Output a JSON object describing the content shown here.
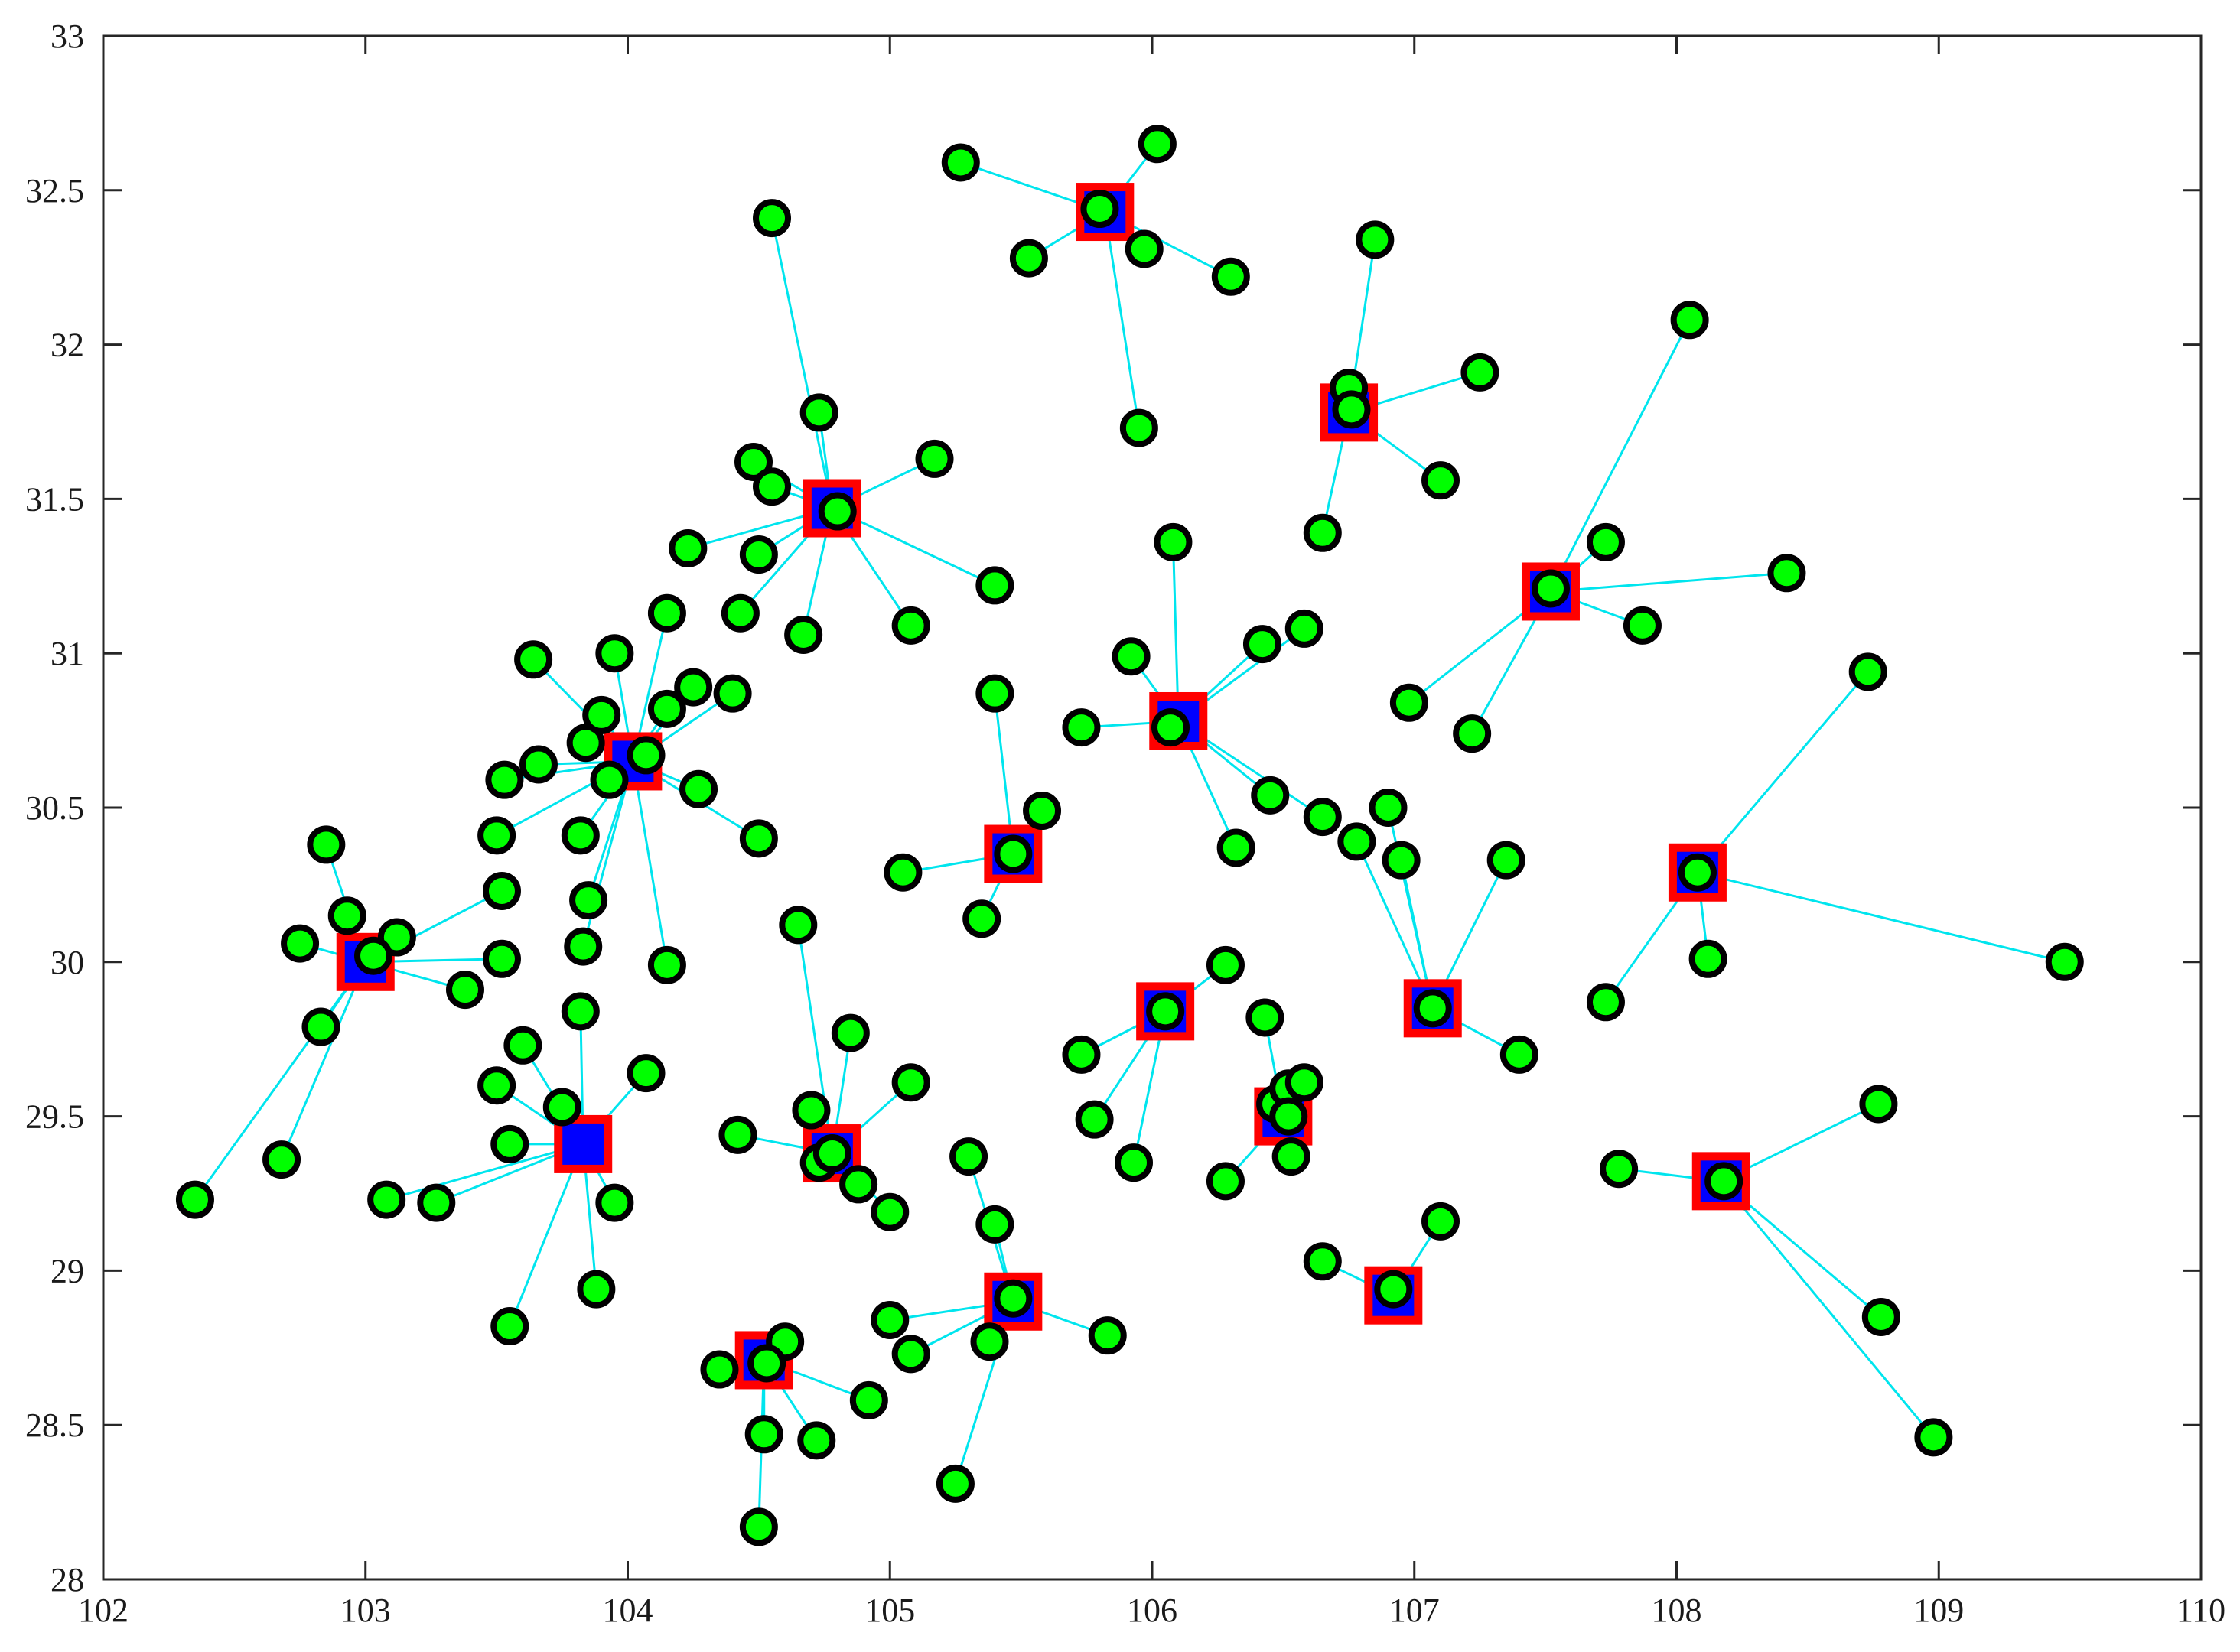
{
  "chart_data": {
    "type": "scatter",
    "title": "",
    "xlabel": "",
    "ylabel": "",
    "xlim": [
      102,
      110
    ],
    "ylim": [
      28,
      33
    ],
    "xticks": [
      102,
      103,
      104,
      105,
      106,
      107,
      108,
      109,
      110
    ],
    "yticks": [
      28,
      28.5,
      29,
      29.5,
      30,
      30.5,
      31,
      31.5,
      32,
      32.5,
      33
    ],
    "xtick_labels": [
      "102",
      "103",
      "104",
      "105",
      "106",
      "107",
      "108",
      "109",
      "110"
    ],
    "ytick_labels": [
      "28",
      "28.5",
      "29",
      "29.5",
      "30",
      "30.5",
      "31",
      "31.5",
      "32",
      "32.5",
      "33"
    ],
    "grid": false,
    "colors": {
      "point_fill": "#00ff00",
      "point_edge": "#000000",
      "center_outer": "#ff0000",
      "center_inner": "#0000ff",
      "link": "#00e5ee"
    },
    "clusters": [
      {
        "center": [
          103.0,
          30.0
        ],
        "points": [
          [
            102.35,
            29.23
          ],
          [
            102.68,
            29.36
          ],
          [
            102.83,
            29.79
          ],
          [
            102.75,
            30.06
          ],
          [
            102.85,
            30.38
          ],
          [
            102.93,
            30.15
          ],
          [
            103.12,
            30.08
          ],
          [
            103.03,
            30.02
          ],
          [
            103.38,
            29.91
          ],
          [
            103.52,
            30.01
          ],
          [
            103.52,
            30.23
          ]
        ]
      },
      {
        "center": [
          104.02,
          30.65
        ],
        "points": [
          [
            103.5,
            30.41
          ],
          [
            103.53,
            30.59
          ],
          [
            103.66,
            30.64
          ],
          [
            103.64,
            30.98
          ],
          [
            103.82,
            30.41
          ],
          [
            103.84,
            30.71
          ],
          [
            103.9,
            30.8
          ],
          [
            103.95,
            31.0
          ],
          [
            104.15,
            30.82
          ],
          [
            104.15,
            31.13
          ],
          [
            104.25,
            30.89
          ],
          [
            104.27,
            30.56
          ],
          [
            104.4,
            30.87
          ],
          [
            104.5,
            30.4
          ],
          [
            103.85,
            30.2
          ],
          [
            103.83,
            30.05
          ],
          [
            104.15,
            29.99
          ],
          [
            104.07,
            30.67
          ],
          [
            103.93,
            30.59
          ]
        ]
      },
      {
        "center": [
          103.83,
          29.41
        ],
        "points": [
          [
            103.6,
            29.73
          ],
          [
            103.5,
            29.6
          ],
          [
            103.55,
            29.41
          ],
          [
            103.75,
            29.53
          ],
          [
            103.82,
            29.84
          ],
          [
            104.07,
            29.64
          ],
          [
            103.95,
            29.22
          ],
          [
            103.88,
            28.94
          ],
          [
            103.55,
            28.82
          ],
          [
            103.08,
            29.23
          ],
          [
            103.27,
            29.22
          ]
        ]
      },
      {
        "center": [
          104.78,
          31.47
        ],
        "points": [
          [
            104.55,
            32.41
          ],
          [
            104.73,
            31.78
          ],
          [
            104.48,
            31.62
          ],
          [
            104.55,
            31.54
          ],
          [
            104.5,
            31.32
          ],
          [
            104.23,
            31.34
          ],
          [
            104.43,
            31.13
          ],
          [
            104.67,
            31.06
          ],
          [
            105.17,
            31.63
          ],
          [
            105.4,
            31.22
          ],
          [
            105.08,
            31.09
          ],
          [
            104.8,
            31.46
          ]
        ]
      },
      {
        "center": [
          104.78,
          29.38
        ],
        "points": [
          [
            104.65,
            30.12
          ],
          [
            104.85,
            29.77
          ],
          [
            104.7,
            29.52
          ],
          [
            104.73,
            29.35
          ],
          [
            104.42,
            29.44
          ],
          [
            104.88,
            29.28
          ],
          [
            105.0,
            29.19
          ],
          [
            105.08,
            29.61
          ],
          [
            104.78,
            29.38
          ]
        ]
      },
      {
        "center": [
          104.52,
          28.71
        ],
        "points": [
          [
            104.35,
            28.68
          ],
          [
            104.6,
            28.77
          ],
          [
            104.52,
            28.47
          ],
          [
            104.5,
            28.17
          ],
          [
            104.72,
            28.45
          ],
          [
            104.92,
            28.58
          ],
          [
            104.53,
            28.7
          ]
        ]
      },
      {
        "center": [
          105.47,
          28.9
        ],
        "points": [
          [
            105.3,
            29.37
          ],
          [
            105.4,
            29.15
          ],
          [
            105.0,
            28.84
          ],
          [
            105.08,
            28.73
          ],
          [
            105.38,
            28.77
          ],
          [
            105.25,
            28.31
          ],
          [
            105.83,
            28.79
          ],
          [
            105.47,
            28.91
          ]
        ]
      },
      {
        "center": [
          105.47,
          30.35
        ],
        "points": [
          [
            105.4,
            30.87
          ],
          [
            105.58,
            30.49
          ],
          [
            105.05,
            30.29
          ],
          [
            105.35,
            30.14
          ],
          [
            105.47,
            30.35
          ]
        ]
      },
      {
        "center": [
          105.82,
          32.43
        ],
        "points": [
          [
            105.27,
            32.59
          ],
          [
            106.02,
            32.65
          ],
          [
            105.53,
            32.28
          ],
          [
            105.97,
            32.31
          ],
          [
            106.3,
            32.22
          ],
          [
            105.95,
            31.73
          ],
          [
            105.8,
            32.44
          ]
        ]
      },
      {
        "center": [
          106.1,
          30.78
        ],
        "points": [
          [
            106.08,
            31.36
          ],
          [
            105.92,
            30.99
          ],
          [
            105.73,
            30.76
          ],
          [
            106.42,
            31.03
          ],
          [
            106.58,
            31.08
          ],
          [
            106.45,
            30.54
          ],
          [
            106.32,
            30.37
          ],
          [
            106.65,
            30.47
          ],
          [
            106.07,
            30.76
          ]
        ]
      },
      {
        "center": [
          106.05,
          29.84
        ],
        "points": [
          [
            106.28,
            29.99
          ],
          [
            105.73,
            29.7
          ],
          [
            105.78,
            29.49
          ],
          [
            105.93,
            29.35
          ],
          [
            106.05,
            29.84
          ]
        ]
      },
      {
        "center": [
          106.5,
          29.5
        ],
        "points": [
          [
            106.43,
            29.82
          ],
          [
            106.47,
            29.54
          ],
          [
            106.52,
            29.59
          ],
          [
            106.58,
            29.61
          ],
          [
            106.53,
            29.37
          ],
          [
            106.28,
            29.29
          ],
          [
            106.52,
            29.5
          ]
        ]
      },
      {
        "center": [
          106.75,
          31.78
        ],
        "points": [
          [
            106.85,
            32.34
          ],
          [
            106.75,
            31.86
          ],
          [
            107.25,
            31.91
          ],
          [
            107.1,
            31.56
          ],
          [
            106.65,
            31.39
          ],
          [
            106.76,
            31.79
          ]
        ]
      },
      {
        "center": [
          107.07,
          29.85
        ],
        "points": [
          [
            106.78,
            30.39
          ],
          [
            106.9,
            30.5
          ],
          [
            106.95,
            30.33
          ],
          [
            107.35,
            30.33
          ],
          [
            107.4,
            29.7
          ],
          [
            107.07,
            29.85
          ]
        ]
      },
      {
        "center": [
          106.92,
          28.92
        ],
        "points": [
          [
            106.65,
            29.03
          ],
          [
            107.1,
            29.16
          ],
          [
            106.92,
            28.94
          ]
        ]
      },
      {
        "center": [
          107.52,
          31.2
        ],
        "points": [
          [
            108.05,
            32.08
          ],
          [
            107.73,
            31.36
          ],
          [
            108.42,
            31.26
          ],
          [
            107.87,
            31.09
          ],
          [
            106.98,
            30.84
          ],
          [
            107.22,
            30.74
          ],
          [
            107.52,
            31.21
          ]
        ]
      },
      {
        "center": [
          108.08,
          30.29
        ],
        "points": [
          [
            108.73,
            30.94
          ],
          [
            109.48,
            30.0
          ],
          [
            108.12,
            30.01
          ],
          [
            107.73,
            29.87
          ],
          [
            108.08,
            30.29
          ]
        ]
      },
      {
        "center": [
          108.17,
          29.29
        ],
        "points": [
          [
            107.78,
            29.33
          ],
          [
            108.77,
            29.54
          ],
          [
            108.78,
            28.85
          ],
          [
            108.98,
            28.46
          ],
          [
            108.18,
            29.29
          ]
        ]
      }
    ]
  }
}
